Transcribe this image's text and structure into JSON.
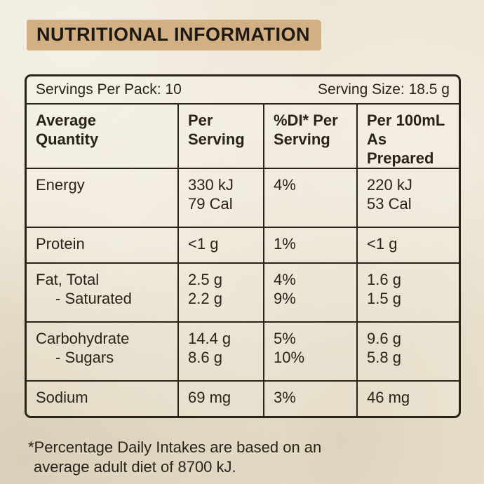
{
  "title": "NUTRITIONAL INFORMATION",
  "panel": {
    "servings_per_pack": "Servings Per Pack: 10",
    "serving_size": "Serving Size: 18.5 g",
    "headers": {
      "col1": [
        "Average",
        "Quantity"
      ],
      "col2": [
        "Per",
        "Serving"
      ],
      "col3": [
        "%DI* Per",
        "Serving"
      ],
      "col4": [
        "Per 100mL",
        "As Prepared"
      ]
    },
    "rows": [
      {
        "name": [
          "Energy",
          ""
        ],
        "per_serving": [
          "330 kJ",
          "79 Cal"
        ],
        "di_per_serving": [
          "4%",
          ""
        ],
        "per_100ml": [
          "220 kJ",
          "53 Cal"
        ]
      },
      {
        "name": [
          "Protein",
          ""
        ],
        "per_serving": [
          "<1 g",
          ""
        ],
        "di_per_serving": [
          "1%",
          ""
        ],
        "per_100ml": [
          "<1 g",
          ""
        ]
      },
      {
        "name": [
          "Fat, Total",
          "- Saturated"
        ],
        "per_serving": [
          "2.5 g",
          "2.2 g"
        ],
        "di_per_serving": [
          "4%",
          "9%"
        ],
        "per_100ml": [
          "1.6 g",
          "1.5 g"
        ]
      },
      {
        "name": [
          "Carbohydrate",
          "- Sugars"
        ],
        "per_serving": [
          "14.4 g",
          "8.6 g"
        ],
        "di_per_serving": [
          "5%",
          "10%"
        ],
        "per_100ml": [
          "9.6 g",
          "5.8 g"
        ]
      },
      {
        "name": [
          "Sodium",
          ""
        ],
        "per_serving": [
          "69 mg",
          ""
        ],
        "di_per_serving": [
          "3%",
          ""
        ],
        "per_100ml": [
          "46 mg",
          ""
        ]
      }
    ]
  },
  "footnote": [
    "*Percentage Daily Intakes are based on an",
    "average adult diet of 8700 kJ."
  ],
  "colors": {
    "paper": "#ece5d3",
    "title_band": "#d2b084",
    "ink": "#29231a"
  }
}
